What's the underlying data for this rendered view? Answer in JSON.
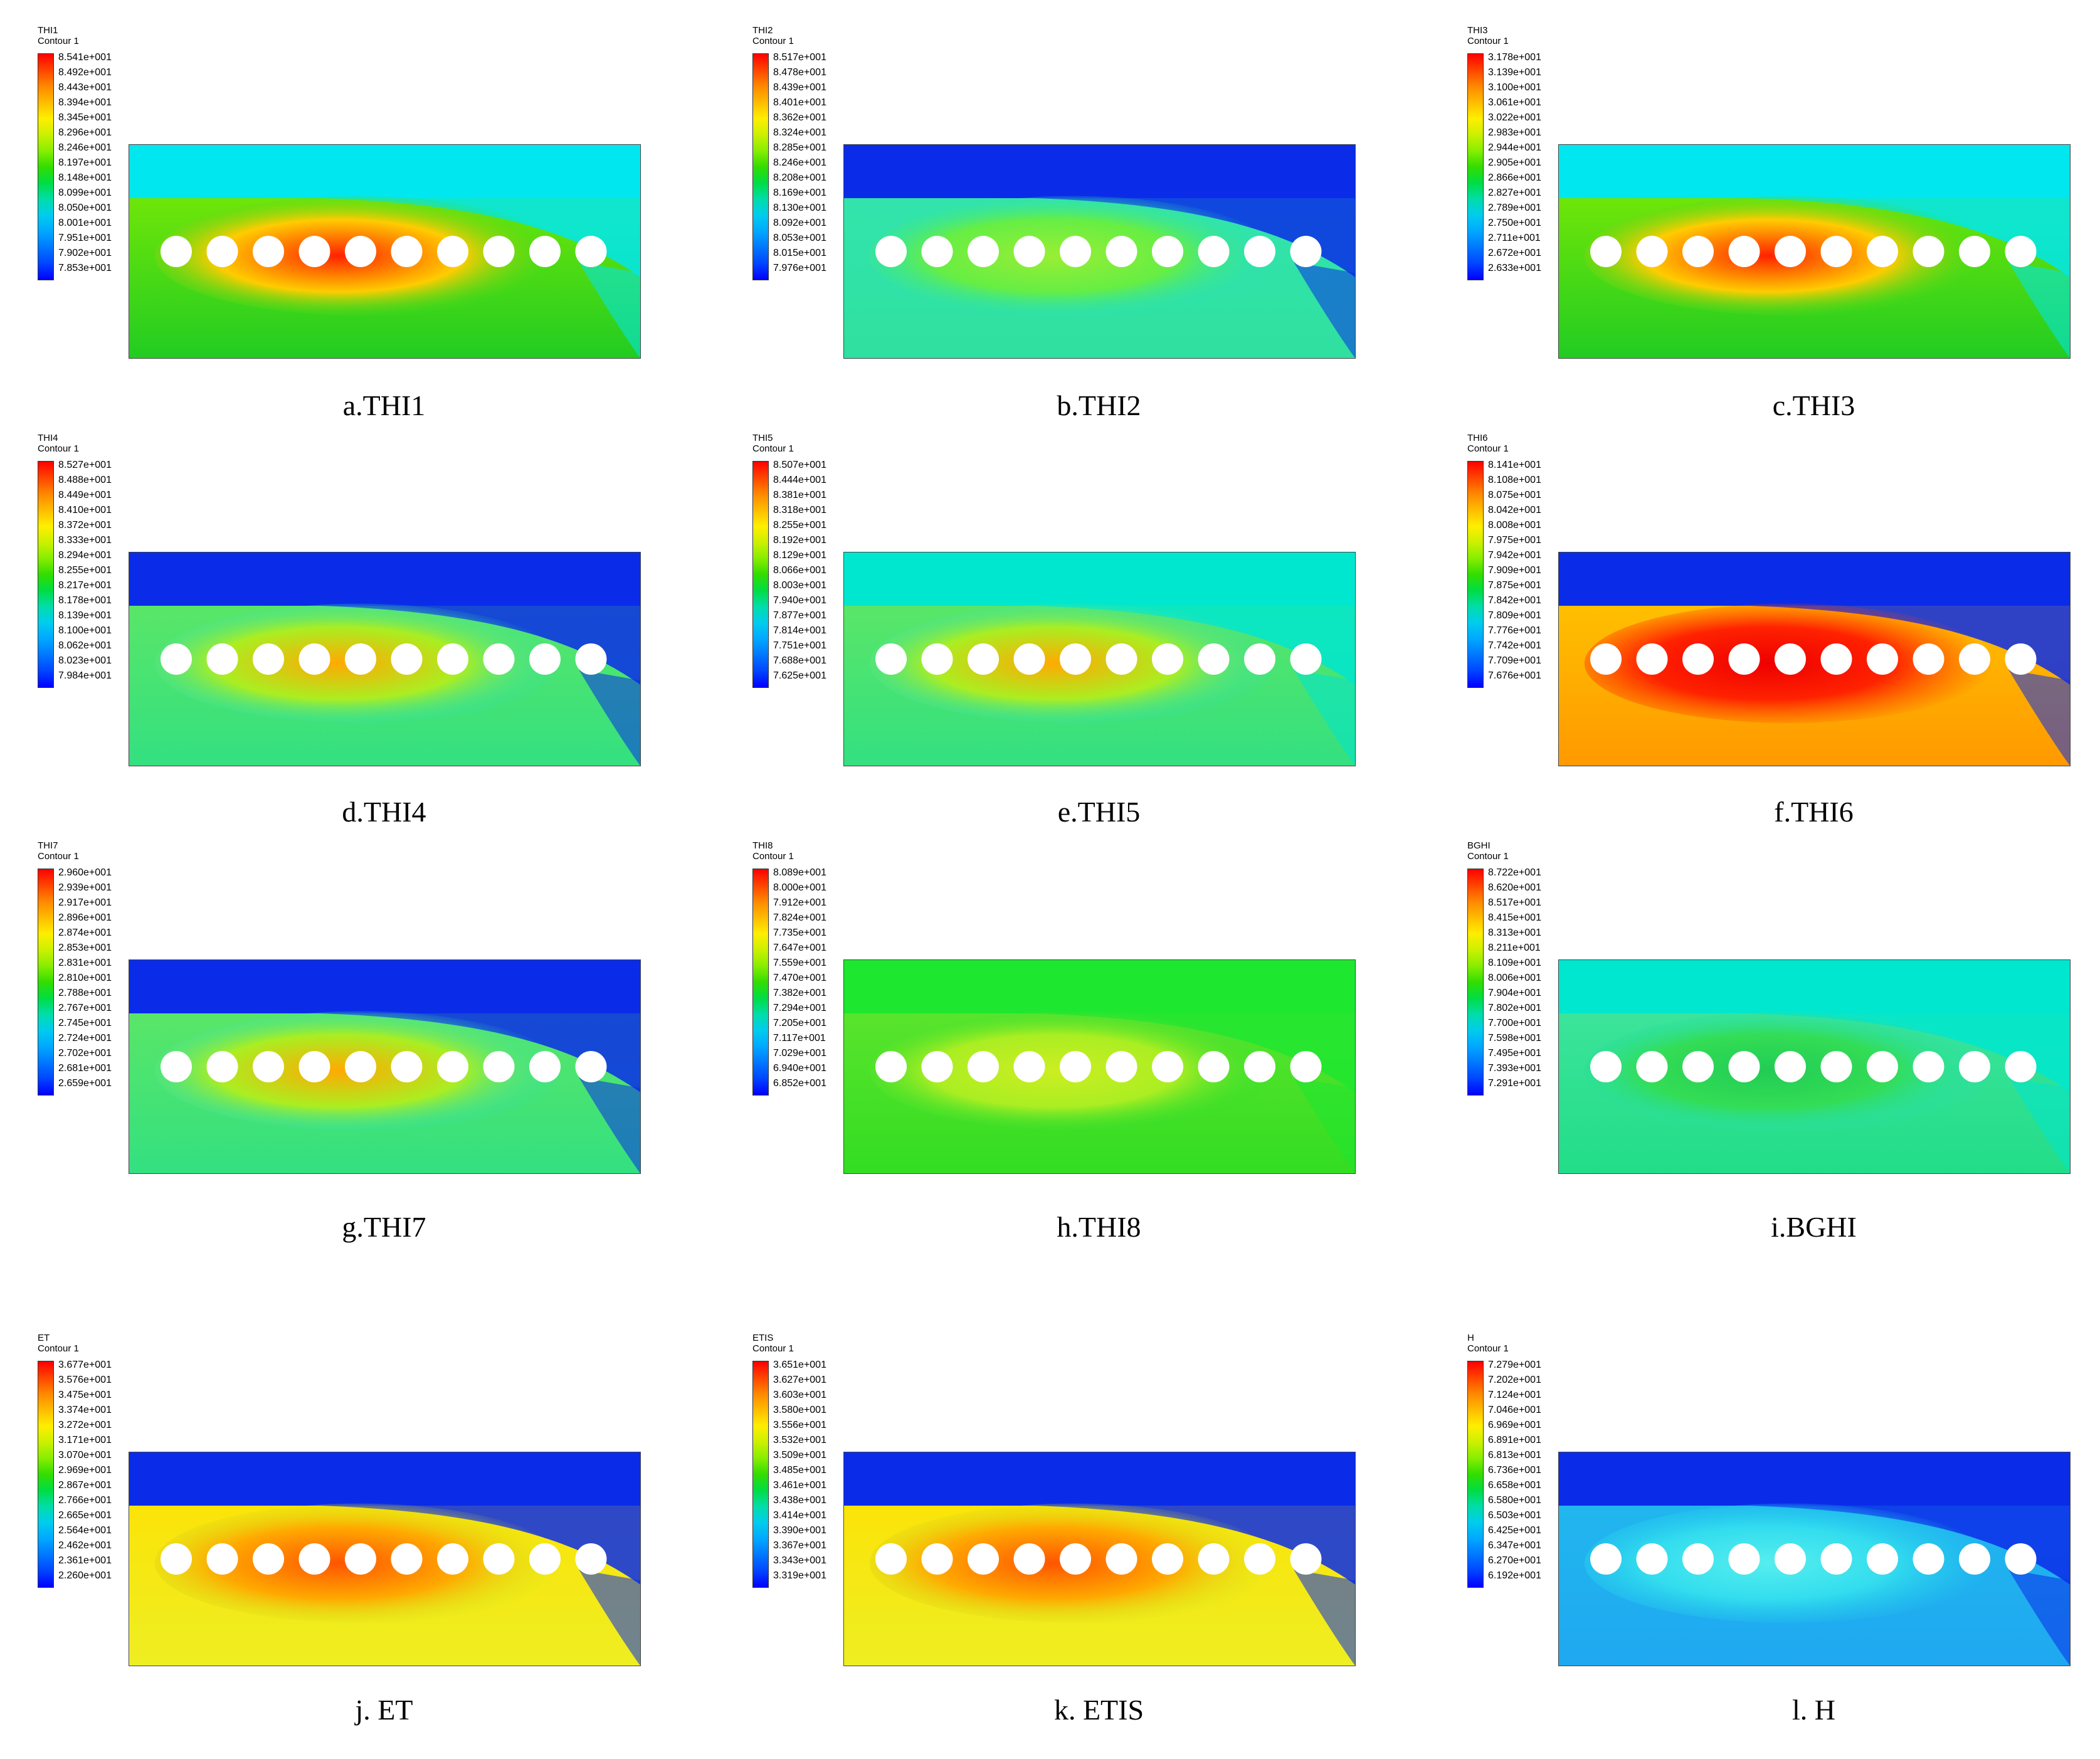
{
  "panels": [
    {
      "id": "THI1",
      "title": "THI1",
      "subtitle": "Contour 1",
      "caption": "a.THI1",
      "scheme": "hot",
      "topColor": "#00e6f0",
      "labels": [
        "8.541e+001",
        "8.492e+001",
        "8.443e+001",
        "8.394e+001",
        "8.345e+001",
        "8.296e+001",
        "8.246e+001",
        "8.197e+001",
        "8.148e+001",
        "8.099e+001",
        "8.050e+001",
        "8.001e+001",
        "7.951e+001",
        "7.902e+001",
        "7.853e+001"
      ]
    },
    {
      "id": "THI2",
      "title": "THI2",
      "subtitle": "Contour 1",
      "caption": "b.THI2",
      "scheme": "cool",
      "topColor": "#0a2de8",
      "labels": [
        "8.517e+001",
        "8.478e+001",
        "8.439e+001",
        "8.401e+001",
        "8.362e+001",
        "8.324e+001",
        "8.285e+001",
        "8.246e+001",
        "8.208e+001",
        "8.169e+001",
        "8.130e+001",
        "8.092e+001",
        "8.053e+001",
        "8.015e+001",
        "7.976e+001"
      ]
    },
    {
      "id": "THI3",
      "title": "THI3",
      "subtitle": "Contour 1",
      "caption": "c.THI3",
      "scheme": "hot",
      "topColor": "#00e6f0",
      "labels": [
        "3.178e+001",
        "3.139e+001",
        "3.100e+001",
        "3.061e+001",
        "3.022e+001",
        "2.983e+001",
        "2.944e+001",
        "2.905e+001",
        "2.866e+001",
        "2.827e+001",
        "2.789e+001",
        "2.750e+001",
        "2.711e+001",
        "2.672e+001",
        "2.633e+001"
      ]
    },
    {
      "id": "THI4",
      "title": "THI4",
      "subtitle": "Contour 1",
      "caption": "d.THI4",
      "scheme": "warm",
      "topColor": "#0a2de8",
      "labels": [
        "8.527e+001",
        "8.488e+001",
        "8.449e+001",
        "8.410e+001",
        "8.372e+001",
        "8.333e+001",
        "8.294e+001",
        "8.255e+001",
        "8.217e+001",
        "8.178e+001",
        "8.139e+001",
        "8.100e+001",
        "8.062e+001",
        "8.023e+001",
        "7.984e+001"
      ]
    },
    {
      "id": "THI5",
      "title": "THI5",
      "subtitle": "Contour 1",
      "caption": "e.THI5",
      "scheme": "warm",
      "topColor": "#00e6d0",
      "labels": [
        "8.507e+001",
        "8.444e+001",
        "8.381e+001",
        "8.318e+001",
        "8.255e+001",
        "8.192e+001",
        "8.129e+001",
        "8.066e+001",
        "8.003e+001",
        "7.940e+001",
        "7.877e+001",
        "7.814e+001",
        "7.751e+001",
        "7.688e+001",
        "7.625e+001"
      ]
    },
    {
      "id": "THI6",
      "title": "THI6",
      "subtitle": "Contour 1",
      "caption": "f.THI6",
      "scheme": "red",
      "topColor": "#0a2de8",
      "labels": [
        "8.141e+001",
        "8.108e+001",
        "8.075e+001",
        "8.042e+001",
        "8.008e+001",
        "7.975e+001",
        "7.942e+001",
        "7.909e+001",
        "7.875e+001",
        "7.842e+001",
        "7.809e+001",
        "7.776e+001",
        "7.742e+001",
        "7.709e+001",
        "7.676e+001"
      ]
    },
    {
      "id": "THI7",
      "title": "THI7",
      "subtitle": "Contour 1",
      "caption": "g.THI7",
      "scheme": "warm",
      "topColor": "#0a2de8",
      "labels": [
        "2.960e+001",
        "2.939e+001",
        "2.917e+001",
        "2.896e+001",
        "2.874e+001",
        "2.853e+001",
        "2.831e+001",
        "2.810e+001",
        "2.788e+001",
        "2.767e+001",
        "2.745e+001",
        "2.724e+001",
        "2.702e+001",
        "2.681e+001",
        "2.659e+001"
      ]
    },
    {
      "id": "THI8",
      "title": "THI8",
      "subtitle": "Contour 1",
      "caption": "h.THI8",
      "scheme": "green",
      "topColor": "#1ee630",
      "labels": [
        "8.089e+001",
        "8.000e+001",
        "7.912e+001",
        "7.824e+001",
        "7.735e+001",
        "7.647e+001",
        "7.559e+001",
        "7.470e+001",
        "7.382e+001",
        "7.294e+001",
        "7.205e+001",
        "7.117e+001",
        "7.029e+001",
        "6.940e+001",
        "6.852e+001"
      ]
    },
    {
      "id": "BGHI",
      "title": "BGHI",
      "subtitle": "Contour 1",
      "caption": "i.BGHI",
      "scheme": "mint",
      "topColor": "#00e6d0",
      "labels": [
        "8.722e+001",
        "8.620e+001",
        "8.517e+001",
        "8.415e+001",
        "8.313e+001",
        "8.211e+001",
        "8.109e+001",
        "8.006e+001",
        "7.904e+001",
        "7.802e+001",
        "7.700e+001",
        "7.598e+001",
        "7.495e+001",
        "7.393e+001",
        "7.291e+001"
      ]
    },
    {
      "id": "ET",
      "title": "ET",
      "subtitle": "Contour 1",
      "caption": "j. ET",
      "scheme": "et",
      "topColor": "#0a2de8",
      "labels": [
        "3.677e+001",
        "3.576e+001",
        "3.475e+001",
        "3.374e+001",
        "3.272e+001",
        "3.171e+001",
        "3.070e+001",
        "2.969e+001",
        "2.867e+001",
        "2.766e+001",
        "2.665e+001",
        "2.564e+001",
        "2.462e+001",
        "2.361e+001",
        "2.260e+001"
      ]
    },
    {
      "id": "ETIS",
      "title": "ETIS",
      "subtitle": "Contour 1",
      "caption": "k. ETIS",
      "scheme": "et",
      "topColor": "#0a2de8",
      "labels": [
        "3.651e+001",
        "3.627e+001",
        "3.603e+001",
        "3.580e+001",
        "3.556e+001",
        "3.532e+001",
        "3.509e+001",
        "3.485e+001",
        "3.461e+001",
        "3.438e+001",
        "3.414e+001",
        "3.390e+001",
        "3.367e+001",
        "3.343e+001",
        "3.319e+001"
      ]
    },
    {
      "id": "H",
      "title": "H",
      "subtitle": "Contour 1",
      "caption": "l. H",
      "scheme": "blue",
      "topColor": "#0a2de8",
      "labels": [
        "7.279e+001",
        "7.202e+001",
        "7.124e+001",
        "7.046e+001",
        "6.969e+001",
        "6.891e+001",
        "6.813e+001",
        "6.736e+001",
        "6.658e+001",
        "6.580e+001",
        "6.503e+001",
        "6.425e+001",
        "6.347e+001",
        "6.270e+001",
        "6.192e+001"
      ]
    }
  ]
}
